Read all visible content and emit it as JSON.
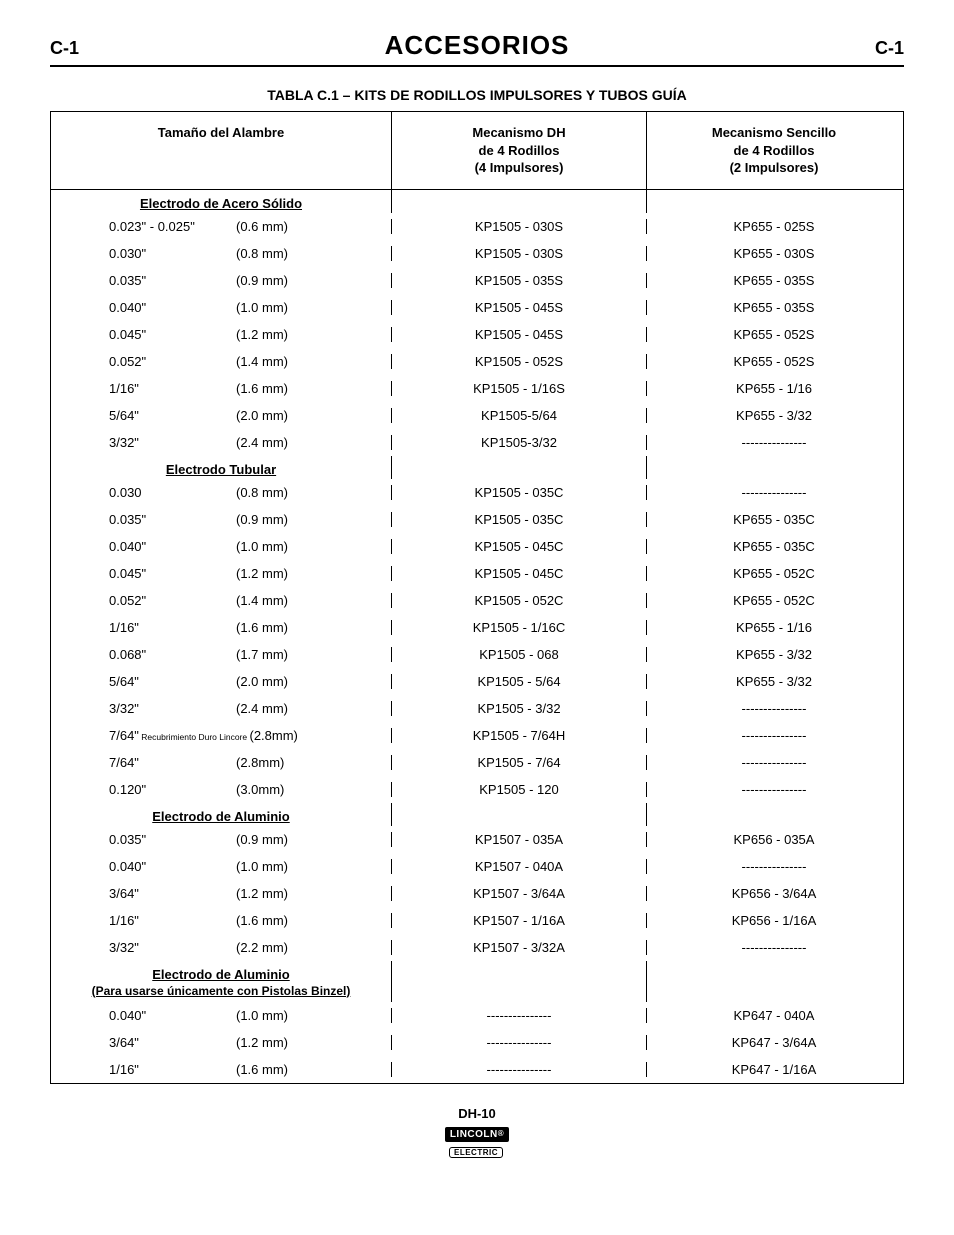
{
  "header": {
    "left": "C-1",
    "title": "ACCESORIOS",
    "right": "C-1"
  },
  "table_title": "TABLA C.1 – KITS DE RODILLOS IMPULSORES Y TUBOS GUÍA",
  "columns": {
    "wire": "Tamaño del Alambre",
    "dh": "Mecanismo DH\nde 4 Rodillos\n(4 Impulsores)",
    "simple": "Mecanismo Sencillo\nde 4 Rodillos\n(2 Impulsores)"
  },
  "sections": [
    {
      "heading": "Electrodo de Acero Sólido",
      "note": null,
      "rows": [
        {
          "in": "0.023\" - 0.025\"",
          "mm": "(0.6 mm)",
          "dh": "KP1505 - 030S",
          "simple": "KP655 - 025S"
        },
        {
          "in": "0.030\"",
          "mm": "(0.8 mm)",
          "dh": "KP1505 - 030S",
          "simple": "KP655 - 030S"
        },
        {
          "in": "0.035\"",
          "mm": "(0.9 mm)",
          "dh": "KP1505 - 035S",
          "simple": "KP655 - 035S"
        },
        {
          "in": "0.040\"",
          "mm": "(1.0 mm)",
          "dh": "KP1505 - 045S",
          "simple": "KP655 - 035S"
        },
        {
          "in": "0.045\"",
          "mm": "(1.2 mm)",
          "dh": "KP1505 - 045S",
          "simple": "KP655 - 052S"
        },
        {
          "in": "0.052\"",
          "mm": "(1.4 mm)",
          "dh": "KP1505 - 052S",
          "simple": "KP655 - 052S"
        },
        {
          "in": "1/16\"",
          "mm": "(1.6 mm)",
          "dh": "KP1505 - 1/16S",
          "simple": "KP655 - 1/16"
        },
        {
          "in": "5/64\"",
          "mm": "(2.0 mm)",
          "dh": "KP1505-5/64",
          "simple": "KP655 - 3/32"
        },
        {
          "in": "3/32\"",
          "mm": "(2.4 mm)",
          "dh": "KP1505-3/32",
          "simple": "---------------"
        }
      ]
    },
    {
      "heading": "Electrodo Tubular",
      "note": null,
      "rows": [
        {
          "in": "0.030",
          "mm": "(0.8 mm)",
          "dh": "KP1505 - 035C",
          "simple": "---------------"
        },
        {
          "in": "0.035\"",
          "mm": "(0.9 mm)",
          "dh": "KP1505 - 035C",
          "simple": "KP655 - 035C"
        },
        {
          "in": "0.040\"",
          "mm": "(1.0 mm)",
          "dh": "KP1505 - 045C",
          "simple": "KP655 - 035C"
        },
        {
          "in": "0.045\"",
          "mm": "(1.2 mm)",
          "dh": "KP1505 - 045C",
          "simple": "KP655 - 052C"
        },
        {
          "in": "0.052\"",
          "mm": "(1.4 mm)",
          "dh": "KP1505 - 052C",
          "simple": "KP655 - 052C"
        },
        {
          "in": "1/16\"",
          "mm": "(1.6 mm)",
          "dh": "KP1505 - 1/16C",
          "simple": "KP655 - 1/16"
        },
        {
          "in": "0.068\"",
          "mm": "(1.7 mm)",
          "dh": "KP1505 - 068",
          "simple": "KP655 - 3/32"
        },
        {
          "in": "5/64\"",
          "mm": "(2.0 mm)",
          "dh": "KP1505 - 5/64",
          "simple": "KP655 - 3/32"
        },
        {
          "in": "3/32\"",
          "mm": "(2.4 mm)",
          "dh": "KP1505 - 3/32",
          "simple": "---------------"
        },
        {
          "in_prefix": "7/64\"",
          "in_small": " Recubrimiento Duro Lincore ",
          "in_suffix": "(2.8mm)",
          "mm": "",
          "dh": "KP1505 - 7/64H",
          "simple": "---------------",
          "special": true
        },
        {
          "in": "7/64\"",
          "mm": "(2.8mm)",
          "dh": "KP1505 - 7/64",
          "simple": "---------------"
        },
        {
          "in": "0.120\"",
          "mm": "(3.0mm)",
          "dh": "KP1505 - 120",
          "simple": "---------------"
        }
      ]
    },
    {
      "heading": "Electrodo de Aluminio",
      "note": null,
      "rows": [
        {
          "in": "0.035\"",
          "mm": "(0.9 mm)",
          "dh": "KP1507 - 035A",
          "simple": "KP656 - 035A"
        },
        {
          "in": "0.040\"",
          "mm": "(1.0 mm)",
          "dh": "KP1507 - 040A",
          "simple": "---------------"
        },
        {
          "in": "3/64\"",
          "mm": "(1.2 mm)",
          "dh": "KP1507 - 3/64A",
          "simple": "KP656 - 3/64A"
        },
        {
          "in": "1/16\"",
          "mm": "(1.6 mm)",
          "dh": "KP1507 - 1/16A",
          "simple": "KP656 - 1/16A"
        },
        {
          "in": "3/32\"",
          "mm": "(2.2 mm)",
          "dh": "KP1507 - 3/32A",
          "simple": "---------------"
        }
      ]
    },
    {
      "heading": "Electrodo de Aluminio",
      "note": "(Para usarse únicamente con Pistolas Binzel)",
      "rows": [
        {
          "in": "0.040\"",
          "mm": "(1.0 mm)",
          "dh": "---------------",
          "simple": "KP647 - 040A"
        },
        {
          "in": "3/64\"",
          "mm": "(1.2 mm)",
          "dh": "---------------",
          "simple": "KP647 - 3/64A"
        },
        {
          "in": "1/16\"",
          "mm": "(1.6 mm)",
          "dh": "---------------",
          "simple": "KP647 - 1/16A"
        }
      ]
    }
  ],
  "footer": {
    "model": "DH-10",
    "brand1": "LINCOLN",
    "brand2": "ELECTRIC"
  }
}
